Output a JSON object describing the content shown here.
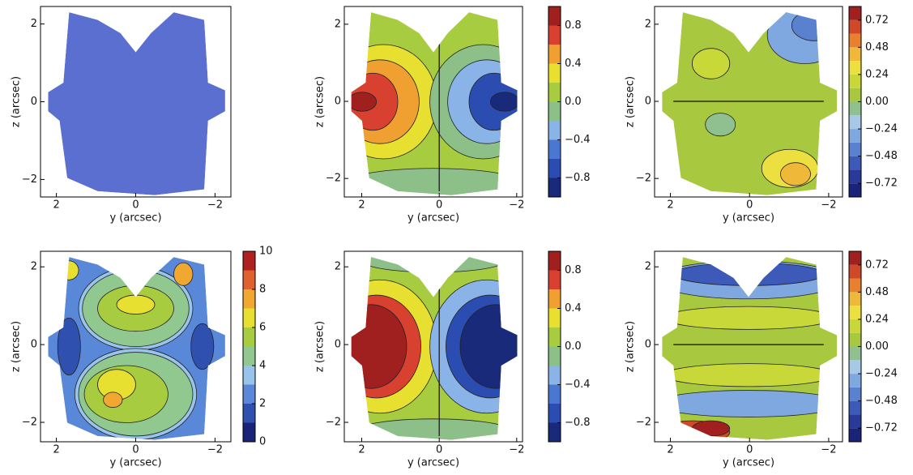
{
  "chart_data": [
    {
      "type": "map",
      "xlabel": "y (arcsec)",
      "ylabel": "z (arcsec)",
      "xlim": [
        2.4,
        -2.4
      ],
      "ylim": [
        -2.45,
        2.45
      ],
      "xticks": [
        2,
        0,
        {
          "value": -2,
          "label": "−2"
        }
      ],
      "yticks": [
        2,
        0,
        {
          "value": -2,
          "label": "−2"
        }
      ],
      "color": "#5a6fd0"
    },
    {
      "type": "contour",
      "xlabel": "y (arcsec)",
      "ylabel": "z (arcsec)",
      "xlim": [
        2.45,
        -2.15
      ],
      "ylim": [
        -2.48,
        2.46
      ],
      "xticks": [
        2,
        0,
        {
          "value": -2,
          "label": "−2"
        }
      ],
      "yticks": [
        2,
        0,
        {
          "value": -2,
          "label": "−2"
        }
      ],
      "colorbar": {
        "levels": [
          -1,
          -0.8,
          -0.6,
          -0.4,
          -0.2,
          0,
          0.2,
          0.4,
          0.6,
          0.8,
          1
        ],
        "colors": [
          "#1a2a7a",
          "#2b4cb0",
          "#4a78d0",
          "#8ab4e8",
          "#8cc088",
          "#a8cc40",
          "#e8e030",
          "#f0a030",
          "#d84030",
          "#a02020"
        ],
        "ticks": [
          0.8,
          0.4,
          {
            "value": 0,
            "label": "0.0"
          },
          {
            "value": -0.4,
            "label": "−0.4"
          },
          {
            "value": -0.8,
            "label": "−0.8"
          }
        ]
      }
    },
    {
      "type": "contour",
      "xlabel": "y (arcsec)",
      "ylabel": "z (arcsec)",
      "xlim": [
        2.4,
        -2.35
      ],
      "ylim": [
        -2.48,
        2.46
      ],
      "xticks": [
        2,
        0,
        {
          "value": -2,
          "label": "−2"
        }
      ],
      "yticks": [
        2,
        0,
        {
          "value": -2,
          "label": "−2"
        }
      ],
      "colorbar": {
        "levels": [
          -0.84,
          -0.72,
          -0.6,
          -0.48,
          -0.36,
          -0.24,
          -0.12,
          0,
          0.12,
          0.24,
          0.36,
          0.48,
          0.6,
          0.72,
          0.84
        ],
        "colors": [
          "#1a237a",
          "#2a3a9a",
          "#3d5ab8",
          "#5a80d0",
          "#80a8e0",
          "#a8c8e8",
          "#90c090",
          "#a8c840",
          "#c8d838",
          "#ece040",
          "#f0b838",
          "#e88030",
          "#d04828",
          "#a02020"
        ],
        "ticks": [
          0.72,
          0.48,
          0.24,
          {
            "value": 0,
            "label": "0.00"
          },
          {
            "value": -0.24,
            "label": "−0.24"
          },
          {
            "value": -0.48,
            "label": "−0.48"
          },
          {
            "value": -0.72,
            "label": "−0.72"
          }
        ]
      }
    },
    {
      "type": "contour",
      "xlabel": "y (arcsec)",
      "ylabel": "z (arcsec)",
      "xlim": [
        2.4,
        -2.4
      ],
      "ylim": [
        -2.5,
        2.4
      ],
      "xticks": [
        2,
        0,
        {
          "value": -2,
          "label": "−2"
        }
      ],
      "yticks": [
        2,
        0,
        {
          "value": -2,
          "label": "−2"
        }
      ],
      "colorbar": {
        "levels": [
          0,
          1,
          2,
          3,
          4,
          5,
          6,
          7,
          8,
          9,
          10
        ],
        "colors": [
          "#1a237a",
          "#3050b0",
          "#5a88d8",
          "#98c4ec",
          "#90c890",
          "#a8cc40",
          "#e8e030",
          "#f0a830",
          "#e06030",
          "#b02020"
        ],
        "ticks": [
          10,
          8,
          6,
          4,
          2,
          0
        ]
      }
    },
    {
      "type": "contour",
      "xlabel": "y (arcsec)",
      "ylabel": "z (arcsec)",
      "xlim": [
        2.45,
        -2.15
      ],
      "ylim": [
        -2.5,
        2.4
      ],
      "xticks": [
        2,
        0,
        {
          "value": -2,
          "label": "−2"
        }
      ],
      "yticks": [
        2,
        0,
        {
          "value": -2,
          "label": "−2"
        }
      ],
      "colorbar": {
        "levels": [
          -1,
          -0.8,
          -0.6,
          -0.4,
          -0.2,
          0,
          0.2,
          0.4,
          0.6,
          0.8,
          1
        ],
        "colors": [
          "#1a2a7a",
          "#2b4cb0",
          "#4a78d0",
          "#8ab4e8",
          "#8cc088",
          "#a8cc40",
          "#e8e030",
          "#f0a030",
          "#d84030",
          "#a02020"
        ],
        "ticks": [
          0.8,
          0.4,
          {
            "value": 0,
            "label": "0.0"
          },
          {
            "value": -0.4,
            "label": "−0.4"
          },
          {
            "value": -0.8,
            "label": "−0.8"
          }
        ]
      }
    },
    {
      "type": "contour",
      "xlabel": "y (arcsec)",
      "ylabel": "z (arcsec)",
      "xlim": [
        2.4,
        -2.35
      ],
      "ylim": [
        -2.5,
        2.4
      ],
      "xticks": [
        2,
        0,
        {
          "value": -2,
          "label": "−2"
        }
      ],
      "yticks": [
        2,
        0,
        {
          "value": -2,
          "label": "−2"
        }
      ],
      "colorbar": {
        "levels": [
          -0.84,
          -0.72,
          -0.6,
          -0.48,
          -0.36,
          -0.24,
          -0.12,
          0,
          0.12,
          0.24,
          0.36,
          0.48,
          0.6,
          0.72,
          0.84
        ],
        "colors": [
          "#1a237a",
          "#2a3a9a",
          "#3d5ab8",
          "#5a80d0",
          "#80a8e0",
          "#a8c8e8",
          "#90c090",
          "#a8c840",
          "#c8d838",
          "#ece040",
          "#f0b838",
          "#e88030",
          "#d04828",
          "#a02020"
        ],
        "ticks": [
          0.72,
          0.48,
          0.24,
          {
            "value": 0,
            "label": "0.00"
          },
          {
            "value": -0.24,
            "label": "−0.24"
          },
          {
            "value": -0.48,
            "label": "−0.48"
          },
          {
            "value": -0.72,
            "label": "−0.72"
          }
        ]
      }
    }
  ]
}
